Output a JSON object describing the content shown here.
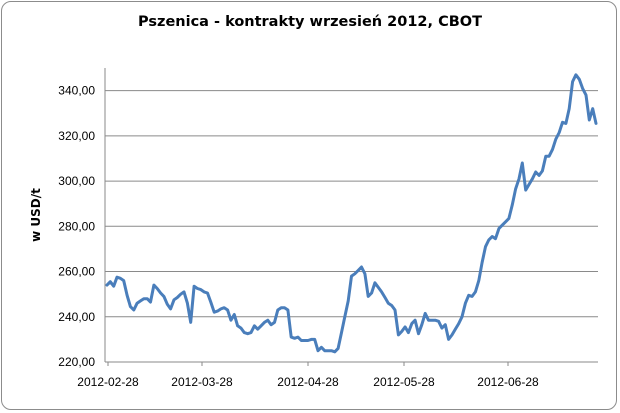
{
  "chart_data": {
    "type": "line",
    "title": "Pszenica - kontrakty wrzesień 2012, CBOT",
    "ylabel": "w USD/t",
    "xlabel": "",
    "ylim": [
      220,
      350
    ],
    "y_ticks": [
      "220,00",
      "240,00",
      "260,00",
      "280,00",
      "300,00",
      "320,00",
      "340,00"
    ],
    "x_ticks": [
      "2012-02-28",
      "2012-03-28",
      "2012-04-28",
      "2012-05-28",
      "2012-06-28"
    ],
    "grid": "horizontal",
    "legend": "none",
    "color": "#4a7ebb",
    "series": [
      {
        "values": [
          254.0,
          255.5,
          253.5,
          257.5,
          257.0,
          256.0,
          249.5,
          244.5,
          243.0,
          246.0,
          247.0,
          248.0,
          248.0,
          246.5,
          254.0,
          252.5,
          250.5,
          249.0,
          245.5,
          243.5,
          247.5,
          248.5,
          250.0,
          251.0,
          246.0,
          237.5,
          253.5,
          252.5,
          252.0,
          251.0,
          250.5,
          246.5,
          242.0,
          242.5,
          243.5,
          244.0,
          243.0,
          238.5,
          241.0,
          236.0,
          235.0,
          233.0,
          232.5,
          233.0,
          236.0,
          234.5,
          236.0,
          237.5,
          238.5,
          236.5,
          237.5,
          243.0,
          244.0,
          244.0,
          243.0,
          231.0,
          230.5,
          231.0,
          229.5,
          229.5,
          229.5,
          230.0,
          230.0,
          225.0,
          226.5,
          225.0,
          225.0,
          225.0,
          224.5,
          226.0,
          233.0,
          240.0,
          247.0,
          258.0,
          259.0,
          260.5,
          262.0,
          259.0,
          249.0,
          250.5,
          255.0,
          253.0,
          251.0,
          248.5,
          246.0,
          245.0,
          243.0,
          232.0,
          233.5,
          235.5,
          233.0,
          237.0,
          238.5,
          232.5,
          236.5,
          241.5,
          238.5,
          238.5,
          238.5,
          238.0,
          235.0,
          236.5,
          230.0,
          232.0,
          234.5,
          237.0,
          240.0,
          246.0,
          249.5,
          249.0,
          251.0,
          256.0,
          264.0,
          271.0,
          274.0,
          275.5,
          274.5,
          279.0,
          280.5,
          282.0,
          283.5,
          289.5,
          296.5,
          301.0,
          308.0,
          296.0,
          298.5,
          301.0,
          304.0,
          302.5,
          304.5,
          311.0,
          311.0,
          314.0,
          318.5,
          321.5,
          326.0,
          325.5,
          332.0,
          344.0,
          347.0,
          345.0,
          341.0,
          338.0,
          327.0,
          332.0,
          325.5
        ]
      }
    ]
  }
}
